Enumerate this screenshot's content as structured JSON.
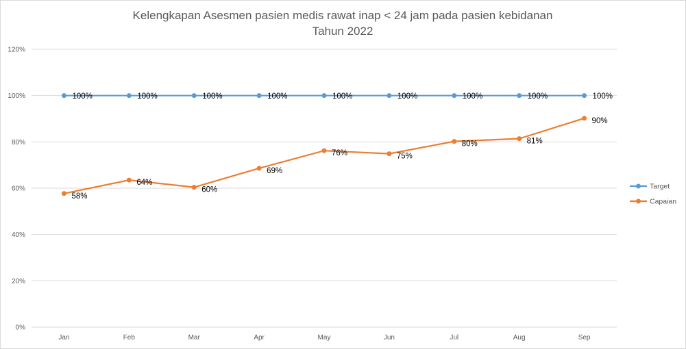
{
  "chart_data": {
    "type": "line",
    "title": "Kelengkapan Asesmen pasien medis rawat inap  < 24 jam pada pasien kebidanan",
    "subtitle": "Tahun 2022",
    "categories": [
      "Jan",
      "Feb",
      "Mar",
      "Apr",
      "May",
      "Jun",
      "Jul",
      "Aug",
      "Sep"
    ],
    "ylim": [
      0,
      120
    ],
    "yticks": [
      "0%",
      "20%",
      "40%",
      "60%",
      "80%",
      "100%",
      "120%"
    ],
    "grid": true,
    "legend_placement": "right",
    "series": [
      {
        "name": "Target",
        "color": "#5B9BD5",
        "values": [
          100,
          100,
          100,
          100,
          100,
          100,
          100,
          100,
          100
        ],
        "labels": [
          "100%",
          "100%",
          "100%",
          "100%",
          "100%",
          "100%",
          "100%",
          "100%",
          "100%"
        ]
      },
      {
        "name": "Capaian",
        "color": "#ED7D31",
        "values": [
          57.7,
          63.5,
          60.4,
          68.6,
          76.2,
          74.9,
          80.2,
          81.4,
          90.2
        ],
        "labels": [
          "58%",
          "64%",
          "60%",
          "69%",
          "76%",
          "75%",
          "80%",
          "81%",
          "90%"
        ]
      }
    ]
  }
}
